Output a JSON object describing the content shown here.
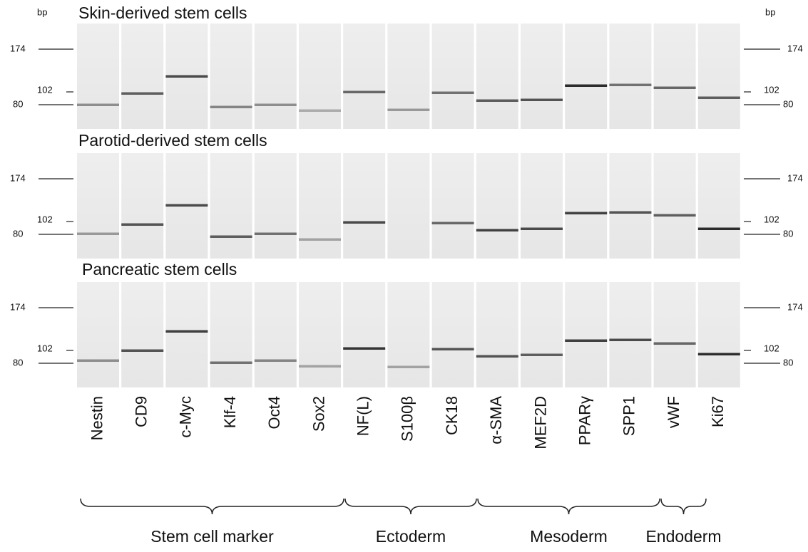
{
  "panels": [
    {
      "title": "Skin-derived stem cells"
    },
    {
      "title": "Parotid-derived stem cells"
    },
    {
      "title": "Pancreatic stem cells"
    }
  ],
  "ladder": {
    "unit": "bp",
    "sizes": [
      "174",
      "102",
      "80"
    ]
  },
  "lanes": [
    "Nestin",
    "CD9",
    "c-Myc",
    "Klf-4",
    "Oct4",
    "Sox2",
    "NF(L)",
    "S100β",
    "CK18",
    "α-SMA",
    "MEF2D",
    "PPARγ",
    "SPP1",
    "vWF",
    "Ki67"
  ],
  "groups": [
    "Stem cell marker",
    "Ectoderm",
    "Mesoderm",
    "Endoderm"
  ]
}
